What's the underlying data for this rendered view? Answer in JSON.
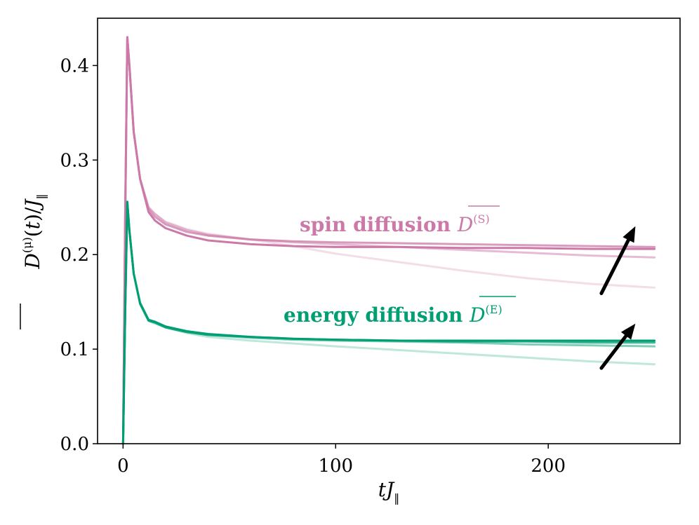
{
  "chart_data": {
    "type": "line",
    "xlabel": "tJ‖",
    "ylabel": "D̄(μ)(t)/J‖",
    "xlim": [
      -12,
      262
    ],
    "ylim": [
      0,
      0.45
    ],
    "xticks": [
      0,
      100,
      200
    ],
    "xtick_labels": [
      "0",
      "100",
      "200"
    ],
    "yticks": [
      0.0,
      0.1,
      0.2,
      0.3,
      0.4
    ],
    "ytick_labels": [
      "0.0",
      "0.1",
      "0.2",
      "0.3",
      "0.4"
    ],
    "grid": false,
    "colors": {
      "spin": "#cc79a7",
      "energy": "#009e73",
      "arrow": "#000000"
    },
    "annotations": {
      "spin": {
        "text": "spin diffusion ",
        "symbol": "D",
        "superscript": "(S)"
      },
      "energy": {
        "text": "energy diffusion ",
        "symbol": "D",
        "superscript": "(E)"
      }
    },
    "series": [
      {
        "group": "spin",
        "opacity": 0.25,
        "x": [
          0,
          1,
          2,
          3,
          5,
          8,
          12,
          15,
          20,
          30,
          40,
          60,
          80,
          100,
          130,
          160,
          190,
          220,
          250
        ],
        "y": [
          0,
          0.24,
          0.43,
          0.4,
          0.33,
          0.28,
          0.25,
          0.243,
          0.235,
          0.227,
          0.222,
          0.216,
          0.209,
          0.201,
          0.192,
          0.183,
          0.175,
          0.169,
          0.165
        ]
      },
      {
        "group": "spin",
        "opacity": 0.5,
        "x": [
          0,
          1,
          2,
          3,
          5,
          8,
          12,
          15,
          20,
          30,
          40,
          60,
          80,
          100,
          130,
          160,
          190,
          220,
          250
        ],
        "y": [
          0,
          0.24,
          0.43,
          0.4,
          0.33,
          0.28,
          0.25,
          0.243,
          0.234,
          0.226,
          0.221,
          0.216,
          0.213,
          0.211,
          0.208,
          0.205,
          0.202,
          0.199,
          0.197
        ]
      },
      {
        "group": "spin",
        "opacity": 0.75,
        "x": [
          0,
          1,
          2,
          3,
          5,
          8,
          12,
          15,
          20,
          30,
          40,
          60,
          80,
          100,
          130,
          160,
          190,
          220,
          250
        ],
        "y": [
          0,
          0.24,
          0.43,
          0.4,
          0.33,
          0.28,
          0.248,
          0.24,
          0.232,
          0.224,
          0.22,
          0.216,
          0.214,
          0.213,
          0.212,
          0.211,
          0.21,
          0.209,
          0.208
        ]
      },
      {
        "group": "spin",
        "opacity": 1.0,
        "x": [
          0,
          1,
          2,
          3,
          5,
          8,
          12,
          15,
          20,
          30,
          40,
          60,
          80,
          100,
          130,
          160,
          190,
          220,
          250
        ],
        "y": [
          0,
          0.24,
          0.43,
          0.4,
          0.33,
          0.28,
          0.245,
          0.236,
          0.228,
          0.22,
          0.215,
          0.211,
          0.209,
          0.208,
          0.208,
          0.207,
          0.207,
          0.206,
          0.206
        ]
      },
      {
        "group": "energy",
        "opacity": 0.25,
        "x": [
          0,
          1,
          2,
          3,
          5,
          8,
          12,
          15,
          20,
          30,
          40,
          60,
          80,
          100,
          130,
          160,
          190,
          220,
          250
        ],
        "y": [
          0,
          0.14,
          0.255,
          0.225,
          0.18,
          0.148,
          0.13,
          0.127,
          0.123,
          0.117,
          0.113,
          0.109,
          0.106,
          0.103,
          0.099,
          0.095,
          0.091,
          0.087,
          0.084
        ]
      },
      {
        "group": "energy",
        "opacity": 0.5,
        "x": [
          0,
          1,
          2,
          3,
          5,
          8,
          12,
          15,
          20,
          30,
          40,
          60,
          80,
          100,
          130,
          160,
          190,
          220,
          250
        ],
        "y": [
          0,
          0.14,
          0.255,
          0.225,
          0.18,
          0.148,
          0.13,
          0.128,
          0.123,
          0.118,
          0.115,
          0.112,
          0.11,
          0.109,
          0.108,
          0.107,
          0.105,
          0.104,
          0.103
        ]
      },
      {
        "group": "energy",
        "opacity": 0.75,
        "x": [
          0,
          1,
          2,
          3,
          5,
          8,
          12,
          15,
          20,
          30,
          40,
          60,
          80,
          100,
          130,
          160,
          190,
          220,
          250
        ],
        "y": [
          0,
          0.14,
          0.255,
          0.225,
          0.18,
          0.148,
          0.13,
          0.128,
          0.123,
          0.118,
          0.115,
          0.113,
          0.111,
          0.11,
          0.109,
          0.108,
          0.108,
          0.107,
          0.107
        ]
      },
      {
        "group": "energy",
        "opacity": 1.0,
        "x": [
          0,
          1,
          2,
          3,
          5,
          8,
          12,
          15,
          20,
          30,
          40,
          60,
          80,
          100,
          130,
          160,
          190,
          220,
          250
        ],
        "y": [
          0,
          0.14,
          0.256,
          0.226,
          0.18,
          0.149,
          0.131,
          0.129,
          0.124,
          0.119,
          0.116,
          0.113,
          0.111,
          0.11,
          0.109,
          0.109,
          0.109,
          0.109,
          0.109
        ]
      }
    ],
    "arrows": [
      {
        "group": "spin",
        "from": [
          225,
          0.159
        ],
        "to": [
          241,
          0.23
        ]
      },
      {
        "group": "energy",
        "from": [
          225,
          0.08
        ],
        "to": [
          241,
          0.127
        ]
      }
    ]
  }
}
